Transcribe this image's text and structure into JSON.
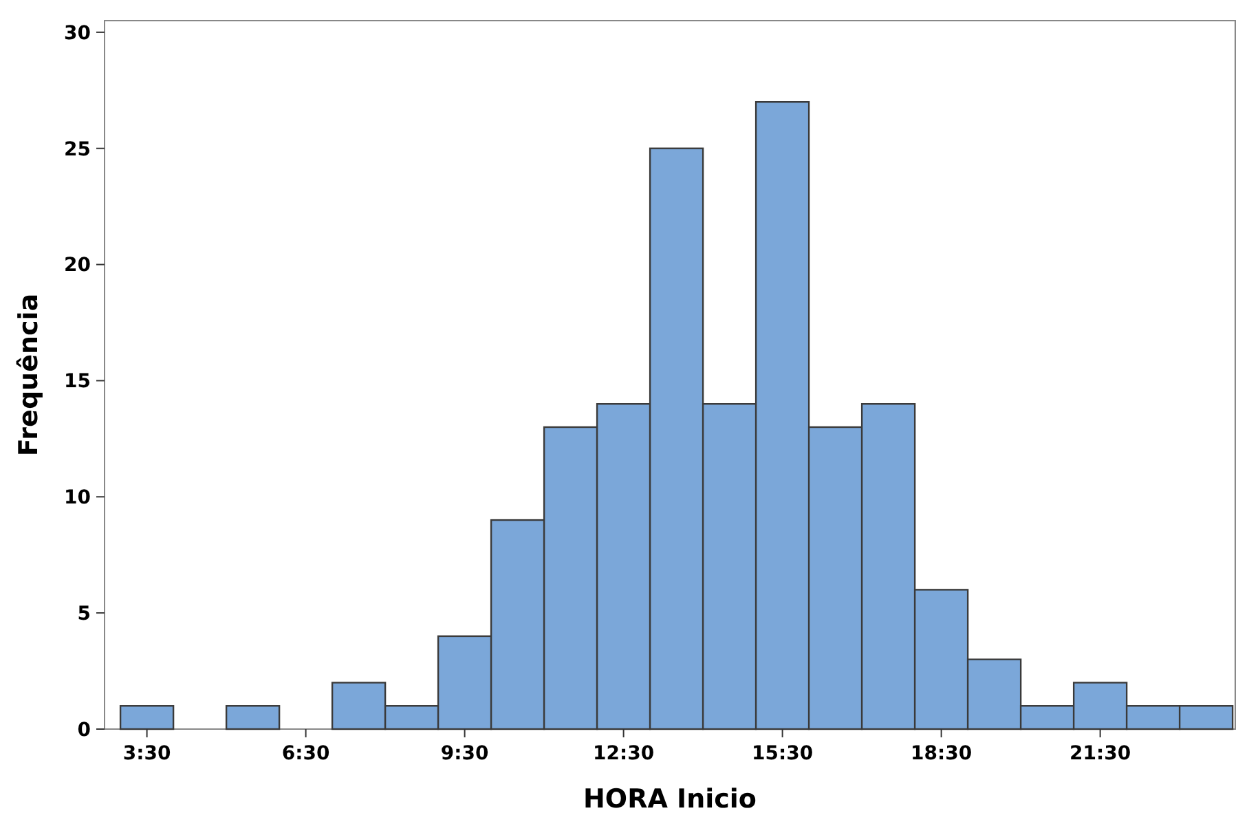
{
  "chart_data": {
    "type": "histogram",
    "xlabel": "HORA Inicio",
    "ylabel": "Frequência",
    "color": "#7ba7d9",
    "bins": [
      3,
      4,
      5,
      6,
      7,
      8,
      9,
      10,
      11,
      12,
      13,
      14,
      15,
      16,
      17,
      18,
      19,
      20,
      21,
      22,
      23,
      24
    ],
    "values": [
      1,
      0,
      1,
      0,
      2,
      1,
      4,
      9,
      13,
      14,
      25,
      14,
      27,
      13,
      14,
      6,
      3,
      1,
      2,
      1,
      1
    ],
    "xlim": [
      2.7,
      24.05
    ],
    "xticks": [
      {
        "value": 3.5,
        "label": "3:30"
      },
      {
        "value": 6.5,
        "label": "6:30"
      },
      {
        "value": 9.5,
        "label": "9:30"
      },
      {
        "value": 12.5,
        "label": "12:30"
      },
      {
        "value": 15.5,
        "label": "15:30"
      },
      {
        "value": 18.5,
        "label": "18:30"
      },
      {
        "value": 21.5,
        "label": "21:30"
      }
    ],
    "ylim": [
      0,
      30.5
    ],
    "yticks": [
      0,
      5,
      10,
      15,
      20,
      25,
      30
    ]
  }
}
